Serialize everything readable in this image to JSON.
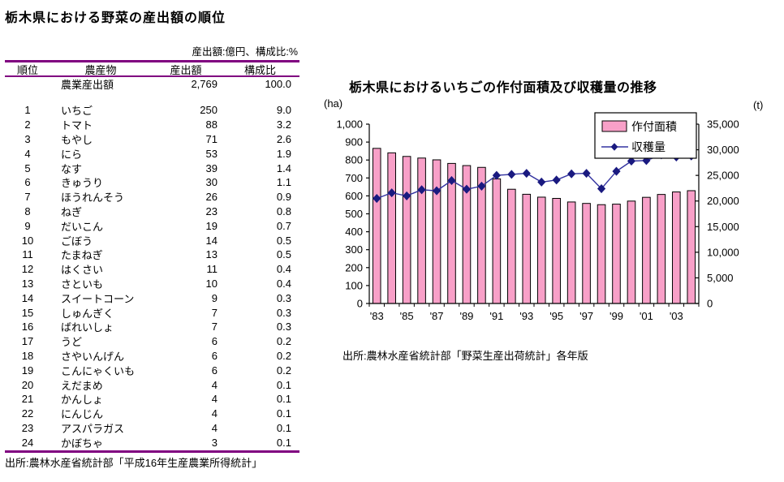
{
  "left_table": {
    "title": "栃木県における野菜の産出額の順位",
    "unit_note": "産出額:億円、構成比:%",
    "headers": {
      "rank": "順位",
      "name": "農産物",
      "value": "産出額",
      "pct": "構成比"
    },
    "total_row": {
      "rank": "",
      "name": "農業産出額",
      "value": "2,769",
      "pct": "100.0"
    },
    "rows": [
      [
        "1",
        "いちご",
        "250",
        "9.0"
      ],
      [
        "2",
        "トマト",
        "88",
        "3.2"
      ],
      [
        "3",
        "もやし",
        "71",
        "2.6"
      ],
      [
        "4",
        "にら",
        "53",
        "1.9"
      ],
      [
        "5",
        "なす",
        "39",
        "1.4"
      ],
      [
        "6",
        "きゅうり",
        "30",
        "1.1"
      ],
      [
        "7",
        "ほうれんそう",
        "26",
        "0.9"
      ],
      [
        "8",
        "ねぎ",
        "23",
        "0.8"
      ],
      [
        "9",
        "だいこん",
        "19",
        "0.7"
      ],
      [
        "10",
        "ごぼう",
        "14",
        "0.5"
      ],
      [
        "11",
        "たまねぎ",
        "13",
        "0.5"
      ],
      [
        "12",
        "はくさい",
        "11",
        "0.4"
      ],
      [
        "13",
        "さといも",
        "10",
        "0.4"
      ],
      [
        "14",
        "スイートコーン",
        "9",
        "0.3"
      ],
      [
        "15",
        "しゅんぎく",
        "7",
        "0.3"
      ],
      [
        "16",
        "ばれいしょ",
        "7",
        "0.3"
      ],
      [
        "17",
        "うど",
        "6",
        "0.2"
      ],
      [
        "18",
        "さやいんげん",
        "6",
        "0.2"
      ],
      [
        "19",
        "こんにゃくいも",
        "6",
        "0.2"
      ],
      [
        "20",
        "えだまめ",
        "4",
        "0.1"
      ],
      [
        "21",
        "かんしょ",
        "4",
        "0.1"
      ],
      [
        "22",
        "にんじん",
        "4",
        "0.1"
      ],
      [
        "23",
        "アスパラガス",
        "4",
        "0.1"
      ],
      [
        "24",
        "かぼちゃ",
        "3",
        "0.1"
      ]
    ],
    "source": "出所:農林水産省統計部「平成16年生産農業所得統計」"
  },
  "chart": {
    "title": "栃木県におけるいちごの作付面積及び収穫量の推移",
    "source": "出所:農林水産省統計部「野菜生産出荷統計」各年版",
    "colors": {
      "bar_fill": "#F8A0C8",
      "bar_border": "#000000",
      "line": "#3333A0",
      "marker": "#1A1A80",
      "axis": "#000000",
      "table_rule": "#800080"
    }
  },
  "chart_data": {
    "type": "bar+line",
    "title": "栃木県におけるいちごの作付面積及び収穫量の推移",
    "categories": [
      "'83",
      "'84",
      "'85",
      "'86",
      "'87",
      "'88",
      "'89",
      "'90",
      "'91",
      "'92",
      "'93",
      "'94",
      "'95",
      "'96",
      "'97",
      "'98",
      "'99",
      "'00",
      "'01",
      "'02",
      "'03",
      "'04"
    ],
    "x_label_every": 2,
    "series": [
      {
        "name": "作付面積",
        "type": "bar",
        "axis": "left",
        "unit": "ha",
        "values": [
          865,
          840,
          820,
          811,
          801,
          781,
          769,
          759,
          695,
          637,
          609,
          593,
          586,
          566,
          558,
          551,
          554,
          571,
          592,
          608,
          622,
          629
        ]
      },
      {
        "name": "収穫量",
        "type": "line",
        "axis": "right",
        "unit": "t",
        "values": [
          20500,
          21600,
          21000,
          22200,
          22000,
          24000,
          22300,
          22900,
          25000,
          25200,
          25400,
          23700,
          24100,
          25300,
          25400,
          22400,
          25800,
          27800,
          27900,
          29000,
          28600,
          28800
        ]
      }
    ],
    "left_axis": {
      "label": "(ha)",
      "min": 0,
      "max": 1000,
      "step": 100
    },
    "right_axis": {
      "label": "(t)",
      "min": 0,
      "max": 35000,
      "step": 5000
    },
    "grid": false,
    "legend_position": "top-right-inside"
  }
}
